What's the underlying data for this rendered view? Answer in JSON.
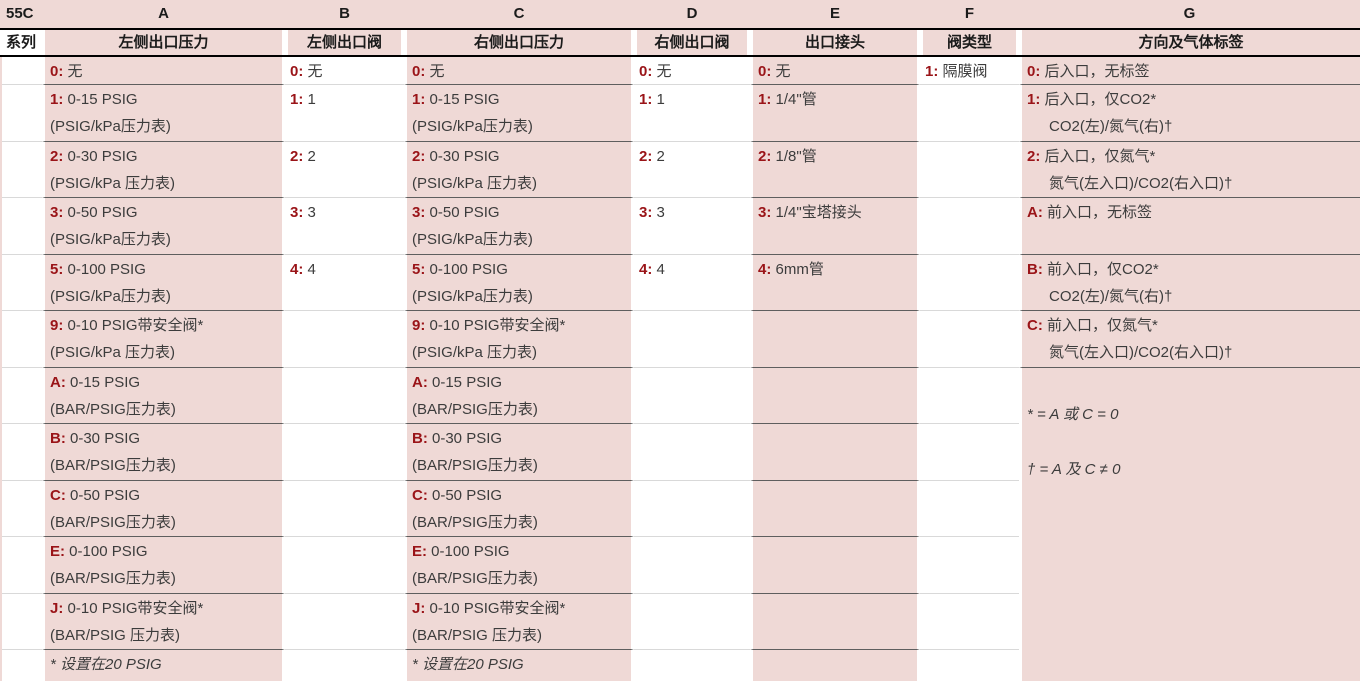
{
  "colors": {
    "pink_fill": "#EFD9D6",
    "code_red": "#9A1418",
    "body_text": "#3C3C3C",
    "header_text": "#1B1B1B",
    "grid_line_dark": "#5E5E5E",
    "grid_line_light": "#D9D9D9"
  },
  "table": {
    "series_code": "55C",
    "series_label": "系列",
    "columns": [
      {
        "letter": "A",
        "name": "左侧出口压力",
        "tint": true,
        "cells": [
          {
            "row": 0,
            "code": "0:",
            "text": "无"
          },
          {
            "row": 1,
            "code": "1:",
            "text": "0-15 PSIG",
            "sub": "(PSIG/kPa压力表)"
          },
          {
            "row": 2,
            "code": "2:",
            "text": "0-30 PSIG",
            "sub": "(PSIG/kPa 压力表)"
          },
          {
            "row": 3,
            "code": "3:",
            "text": "0-50 PSIG",
            "sub": "(PSIG/kPa压力表)"
          },
          {
            "row": 4,
            "code": "5:",
            "text": "0-100 PSIG",
            "sub": "(PSIG/kPa压力表)"
          },
          {
            "row": 5,
            "code": "9:",
            "text": "0-10 PSIG带安全阀*",
            "sub": "(PSIG/kPa 压力表)"
          },
          {
            "row": 6,
            "code": "A:",
            "text": "0-15 PSIG",
            "sub": "(BAR/PSIG压力表)"
          },
          {
            "row": 7,
            "code": "B:",
            "text": "0-30 PSIG",
            "sub": "(BAR/PSIG压力表)"
          },
          {
            "row": 8,
            "code": "C:",
            "text": "0-50 PSIG",
            "sub": "(BAR/PSIG压力表)"
          },
          {
            "row": 9,
            "code": "E:",
            "text": "0-100 PSIG",
            "sub": "(BAR/PSIG压力表)"
          },
          {
            "row": 10,
            "code": "J:",
            "text": "0-10 PSIG带安全阀*",
            "sub": "(BAR/PSIG 压力表)"
          },
          {
            "row": 11,
            "italic": true,
            "text": "* 设置在20 PSIG"
          }
        ]
      },
      {
        "letter": "B",
        "name": "左侧出口阀",
        "tint": false,
        "cells": [
          {
            "row": 0,
            "code": "0:",
            "text": "无"
          },
          {
            "row": 1,
            "code": "1:",
            "text": "1"
          },
          {
            "row": 2,
            "code": "2:",
            "text": "2"
          },
          {
            "row": 3,
            "code": "3:",
            "text": "3"
          },
          {
            "row": 4,
            "code": "4:",
            "text": "4"
          }
        ]
      },
      {
        "letter": "C",
        "name": "右侧出口压力",
        "tint": true,
        "cells": [
          {
            "row": 0,
            "code": "0:",
            "text": "无"
          },
          {
            "row": 1,
            "code": "1:",
            "text": "0-15 PSIG",
            "sub": "(PSIG/kPa压力表)"
          },
          {
            "row": 2,
            "code": "2:",
            "text": "0-30 PSIG",
            "sub": "(PSIG/kPa 压力表)"
          },
          {
            "row": 3,
            "code": "3:",
            "text": "0-50 PSIG",
            "sub": "(PSIG/kPa压力表)"
          },
          {
            "row": 4,
            "code": "5:",
            "text": "0-100 PSIG",
            "sub": "(PSIG/kPa压力表)"
          },
          {
            "row": 5,
            "code": "9:",
            "text": "0-10 PSIG带安全阀*",
            "sub": "(PSIG/kPa 压力表)"
          },
          {
            "row": 6,
            "code": "A:",
            "text": "0-15 PSIG",
            "sub": "(BAR/PSIG压力表)"
          },
          {
            "row": 7,
            "code": "B:",
            "text": "0-30 PSIG",
            "sub": "(BAR/PSIG压力表)"
          },
          {
            "row": 8,
            "code": "C:",
            "text": "0-50 PSIG",
            "sub": "(BAR/PSIG压力表)"
          },
          {
            "row": 9,
            "code": "E:",
            "text": "0-100 PSIG",
            "sub": "(BAR/PSIG压力表)"
          },
          {
            "row": 10,
            "code": "J:",
            "text": "0-10 PSIG带安全阀*",
            "sub": "(BAR/PSIG 压力表)"
          },
          {
            "row": 11,
            "italic": true,
            "text": "* 设置在20 PSIG"
          }
        ]
      },
      {
        "letter": "D",
        "name": "右侧出口阀",
        "tint": false,
        "cells": [
          {
            "row": 0,
            "code": "0:",
            "text": "无"
          },
          {
            "row": 1,
            "code": "1:",
            "text": "1"
          },
          {
            "row": 2,
            "code": "2:",
            "text": "2"
          },
          {
            "row": 3,
            "code": "3:",
            "text": "3"
          },
          {
            "row": 4,
            "code": "4:",
            "text": "4"
          }
        ]
      },
      {
        "letter": "E",
        "name": "出口接头",
        "tint": true,
        "cells": [
          {
            "row": 0,
            "code": "0:",
            "text": "无"
          },
          {
            "row": 1,
            "code": "1:",
            "text": "1/4\"管"
          },
          {
            "row": 2,
            "code": "2:",
            "text": "1/8\"管"
          },
          {
            "row": 3,
            "code": "3:",
            "text": "1/4\"宝塔接头"
          },
          {
            "row": 4,
            "code": "4:",
            "text": "6mm管"
          }
        ]
      },
      {
        "letter": "F",
        "name": "阀类型",
        "tint": false,
        "cells": [
          {
            "row": 0,
            "code": "1:",
            "text": "隔膜阀"
          }
        ]
      },
      {
        "letter": "G",
        "name": "方向及气体标签",
        "tint": true,
        "cells": [
          {
            "row": 0,
            "code": "0:",
            "text": "后入口，无标签"
          },
          {
            "row": 1,
            "code": "1:",
            "text": "后入口，仅CO2*",
            "sub": "CO2(左)/氮气(右)†",
            "sub_indent": true
          },
          {
            "row": 2,
            "code": "2:",
            "text": "后入口，仅氮气*",
            "sub": "氮气(左入口)/CO2(右入口)†",
            "sub_indent": true
          },
          {
            "row": 3,
            "code": "A:",
            "text": "前入口，无标签"
          },
          {
            "row": 4,
            "code": "B:",
            "text": "前入口，仅CO2*",
            "sub": "CO2(左)/氮气(右)†",
            "sub_indent": true
          },
          {
            "row": 5,
            "code": "C:",
            "text": "前入口，仅氮气*",
            "sub": "氮气(左入口)/CO2(右入口)†",
            "sub_indent": true
          }
        ],
        "footnotes": [
          "* = A 或 C = 0",
          "† = A 及 C ≠ 0"
        ]
      }
    ]
  }
}
